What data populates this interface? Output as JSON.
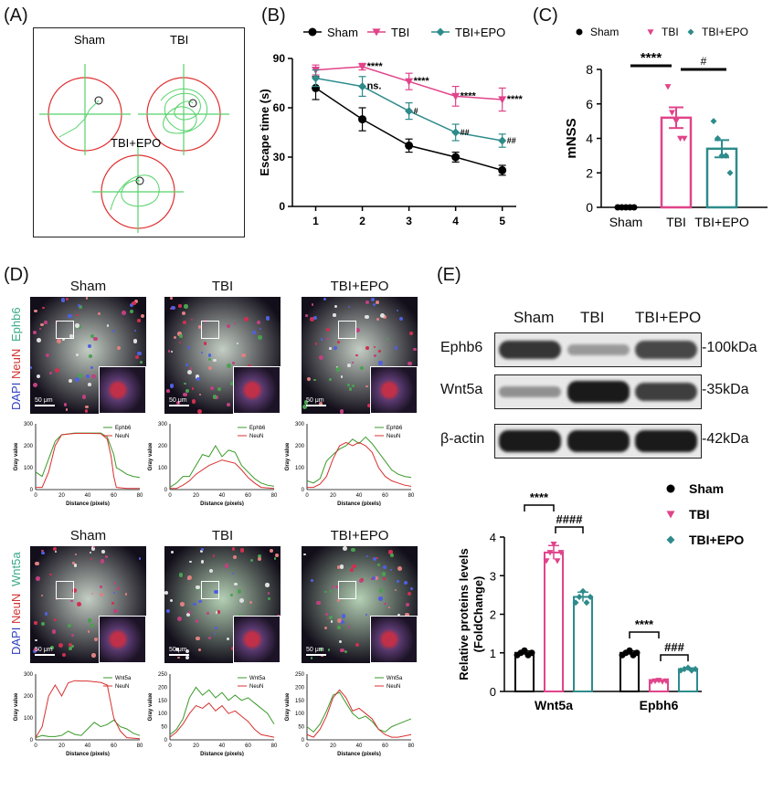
{
  "panel_labels": {
    "a": "(A)",
    "b": "(B)",
    "c": "(C)",
    "d": "(D)",
    "e": "(E)"
  },
  "colors": {
    "sham": "#000000",
    "tbi": "#e0448a",
    "epo": "#2e8b8b",
    "circle": "#e03030",
    "path": "#56d26a"
  },
  "panel_a": {
    "groups": [
      "Sham",
      "TBI",
      "TBI+EPO"
    ]
  },
  "chart_data": [
    {
      "id": "escape_time",
      "type": "line",
      "title": "",
      "xlabel": "",
      "ylabel": "Escape time (s)",
      "x": [
        1,
        2,
        3,
        4,
        5
      ],
      "xlim": [
        0.5,
        5.3
      ],
      "ylim": [
        0,
        90
      ],
      "yticks": [
        0,
        30,
        60,
        90
      ],
      "legend": [
        "Sham",
        "TBI",
        "TBI+EPO"
      ],
      "series": [
        {
          "name": "Sham",
          "values": [
            72,
            53,
            37,
            30,
            22
          ],
          "err": [
            7,
            7,
            4,
            3,
            3
          ]
        },
        {
          "name": "TBI",
          "values": [
            83,
            85,
            76,
            67,
            65
          ],
          "err": [
            3,
            2,
            5,
            6,
            7
          ]
        },
        {
          "name": "TBI+EPO",
          "values": [
            78,
            73,
            58,
            45,
            40
          ],
          "err": [
            5,
            6,
            5,
            5,
            4
          ]
        }
      ],
      "annotations": [
        {
          "x": 2,
          "series": "TBI",
          "text": "****"
        },
        {
          "x": 3,
          "series": "TBI",
          "text": "****"
        },
        {
          "x": 4,
          "series": "TBI",
          "text": "****"
        },
        {
          "x": 5,
          "series": "TBI",
          "text": "****"
        },
        {
          "x": 2,
          "series": "TBI+EPO",
          "text": "ns."
        },
        {
          "x": 3,
          "series": "TBI+EPO",
          "text": "#"
        },
        {
          "x": 4,
          "series": "TBI+EPO",
          "text": "##"
        },
        {
          "x": 5,
          "series": "TBI+EPO",
          "text": "##"
        }
      ]
    },
    {
      "id": "mnss",
      "type": "bar",
      "ylabel": "mNSS",
      "categories": [
        "Sham",
        "TBI",
        "TBI+EPO"
      ],
      "values": [
        0,
        5.2,
        3.4
      ],
      "err": [
        0,
        0.6,
        0.5
      ],
      "points": [
        [
          0,
          0,
          0,
          0,
          0
        ],
        [
          7,
          5.5,
          5,
          4,
          4
        ],
        [
          5,
          4,
          3,
          3,
          2
        ]
      ],
      "ylim": [
        0,
        8
      ],
      "yticks": [
        0,
        2,
        4,
        6,
        8
      ],
      "legend": [
        "Sham",
        "TBI",
        "TBI+EPO"
      ],
      "significance": [
        {
          "from": "Sham",
          "to": "TBI",
          "text": "****"
        },
        {
          "from": "TBI",
          "to": "TBI+EPO",
          "text": "#"
        }
      ]
    },
    {
      "id": "gray_ephb6",
      "type": "line",
      "xlabel": "Distance (pixels)",
      "ylabel": "Gray value",
      "xlim": [
        0,
        80
      ],
      "ylim": [
        0,
        300
      ],
      "panels": [
        {
          "group": "Sham",
          "legend": [
            "Ephb6",
            "NeuN"
          ],
          "green": [
            [
              0,
              80
            ],
            [
              5,
              60
            ],
            [
              10,
              140
            ],
            [
              15,
              220
            ],
            [
              20,
              250
            ],
            [
              30,
              258
            ],
            [
              40,
              258
            ],
            [
              50,
              258
            ],
            [
              55,
              240
            ],
            [
              60,
              160
            ],
            [
              62,
              100
            ],
            [
              65,
              90
            ],
            [
              70,
              70
            ],
            [
              75,
              60
            ],
            [
              80,
              55
            ]
          ],
          "red": [
            [
              0,
              10
            ],
            [
              5,
              10
            ],
            [
              10,
              80
            ],
            [
              15,
              200
            ],
            [
              20,
              250
            ],
            [
              30,
              256
            ],
            [
              40,
              256
            ],
            [
              50,
              255
            ],
            [
              55,
              230
            ],
            [
              58,
              150
            ],
            [
              60,
              60
            ],
            [
              62,
              10
            ],
            [
              70,
              5
            ],
            [
              80,
              5
            ]
          ]
        },
        {
          "group": "TBI",
          "legend": [
            "Ephb6",
            "NeuN"
          ],
          "green": [
            [
              0,
              10
            ],
            [
              5,
              30
            ],
            [
              10,
              60
            ],
            [
              15,
              60
            ],
            [
              20,
              110
            ],
            [
              25,
              160
            ],
            [
              30,
              150
            ],
            [
              35,
              200
            ],
            [
              40,
              150
            ],
            [
              45,
              180
            ],
            [
              50,
              170
            ],
            [
              55,
              110
            ],
            [
              60,
              80
            ],
            [
              65,
              50
            ],
            [
              70,
              30
            ],
            [
              75,
              20
            ],
            [
              80,
              15
            ]
          ],
          "red": [
            [
              0,
              5
            ],
            [
              5,
              5
            ],
            [
              10,
              20
            ],
            [
              15,
              40
            ],
            [
              20,
              70
            ],
            [
              30,
              110
            ],
            [
              40,
              135
            ],
            [
              50,
              120
            ],
            [
              55,
              90
            ],
            [
              60,
              55
            ],
            [
              65,
              30
            ],
            [
              70,
              10
            ],
            [
              80,
              5
            ]
          ]
        },
        {
          "group": "TBI+EPO",
          "legend": [
            "Ephb6",
            "NeuN"
          ],
          "green": [
            [
              0,
              40
            ],
            [
              5,
              30
            ],
            [
              10,
              50
            ],
            [
              15,
              130
            ],
            [
              20,
              160
            ],
            [
              25,
              185
            ],
            [
              30,
              200
            ],
            [
              35,
              230
            ],
            [
              40,
              210
            ],
            [
              45,
              240
            ],
            [
              50,
              210
            ],
            [
              55,
              170
            ],
            [
              60,
              130
            ],
            [
              65,
              90
            ],
            [
              70,
              70
            ],
            [
              75,
              60
            ],
            [
              80,
              55
            ]
          ],
          "red": [
            [
              0,
              10
            ],
            [
              5,
              10
            ],
            [
              10,
              25
            ],
            [
              15,
              60
            ],
            [
              20,
              140
            ],
            [
              25,
              200
            ],
            [
              30,
              215
            ],
            [
              35,
              200
            ],
            [
              40,
              215
            ],
            [
              45,
              200
            ],
            [
              50,
              170
            ],
            [
              55,
              100
            ],
            [
              60,
              60
            ],
            [
              65,
              40
            ],
            [
              70,
              30
            ],
            [
              75,
              20
            ],
            [
              80,
              15
            ]
          ]
        }
      ]
    },
    {
      "id": "gray_wnt5a",
      "type": "line",
      "xlabel": "Distance (pixels)",
      "ylabel": "Gray value",
      "xlim": [
        0,
        80
      ],
      "panels": [
        {
          "group": "Sham",
          "legend": [
            "Wnt5a",
            "NeuN"
          ],
          "ylim": [
            0,
            300
          ],
          "green": [
            [
              0,
              10
            ],
            [
              5,
              20
            ],
            [
              10,
              15
            ],
            [
              15,
              15
            ],
            [
              20,
              20
            ],
            [
              25,
              40
            ],
            [
              30,
              25
            ],
            [
              35,
              20
            ],
            [
              40,
              50
            ],
            [
              45,
              80
            ],
            [
              50,
              60
            ],
            [
              55,
              70
            ],
            [
              60,
              90
            ],
            [
              65,
              60
            ],
            [
              70,
              50
            ],
            [
              75,
              30
            ],
            [
              80,
              20
            ]
          ],
          "red": [
            [
              0,
              10
            ],
            [
              5,
              60
            ],
            [
              10,
              200
            ],
            [
              15,
              250
            ],
            [
              20,
              200
            ],
            [
              25,
              260
            ],
            [
              30,
              270
            ],
            [
              35,
              268
            ],
            [
              40,
              268
            ],
            [
              45,
              265
            ],
            [
              50,
              262
            ],
            [
              55,
              250
            ],
            [
              60,
              100
            ],
            [
              65,
              40
            ],
            [
              70,
              10
            ],
            [
              80,
              5
            ]
          ]
        },
        {
          "group": "TBI",
          "legend": [
            "Wnt5a",
            "NeuN"
          ],
          "ylim": [
            0,
            250
          ],
          "green": [
            [
              0,
              20
            ],
            [
              5,
              40
            ],
            [
              10,
              80
            ],
            [
              15,
              160
            ],
            [
              20,
              200
            ],
            [
              25,
              170
            ],
            [
              30,
              190
            ],
            [
              35,
              160
            ],
            [
              40,
              180
            ],
            [
              45,
              150
            ],
            [
              50,
              170
            ],
            [
              55,
              150
            ],
            [
              60,
              160
            ],
            [
              65,
              140
            ],
            [
              70,
              120
            ],
            [
              75,
              100
            ],
            [
              80,
              60
            ]
          ],
          "red": [
            [
              0,
              10
            ],
            [
              5,
              30
            ],
            [
              10,
              60
            ],
            [
              15,
              100
            ],
            [
              20,
              130
            ],
            [
              25,
              120
            ],
            [
              30,
              140
            ],
            [
              35,
              110
            ],
            [
              40,
              130
            ],
            [
              45,
              100
            ],
            [
              50,
              110
            ],
            [
              55,
              90
            ],
            [
              60,
              70
            ],
            [
              65,
              40
            ],
            [
              70,
              20
            ],
            [
              80,
              10
            ]
          ]
        },
        {
          "group": "TBI+EPO",
          "legend": [
            "Wnt5a",
            "NeuN"
          ],
          "ylim": [
            0,
            250
          ],
          "green": [
            [
              0,
              50
            ],
            [
              5,
              30
            ],
            [
              10,
              60
            ],
            [
              15,
              110
            ],
            [
              20,
              170
            ],
            [
              25,
              180
            ],
            [
              30,
              140
            ],
            [
              35,
              100
            ],
            [
              40,
              80
            ],
            [
              45,
              90
            ],
            [
              50,
              70
            ],
            [
              55,
              40
            ],
            [
              60,
              30
            ],
            [
              65,
              50
            ],
            [
              70,
              60
            ],
            [
              75,
              70
            ],
            [
              80,
              80
            ]
          ],
          "red": [
            [
              0,
              20
            ],
            [
              5,
              10
            ],
            [
              10,
              40
            ],
            [
              15,
              90
            ],
            [
              20,
              160
            ],
            [
              25,
              190
            ],
            [
              30,
              160
            ],
            [
              35,
              110
            ],
            [
              40,
              120
            ],
            [
              45,
              100
            ],
            [
              50,
              80
            ],
            [
              55,
              40
            ],
            [
              60,
              20
            ],
            [
              65,
              10
            ],
            [
              70,
              10
            ],
            [
              80,
              20
            ]
          ]
        }
      ]
    },
    {
      "id": "relative_proteins",
      "type": "bar",
      "ylabel": "Relative proteins levels (FoldChange)",
      "categories": [
        "Wnt5a",
        "Epbh6"
      ],
      "series": [
        {
          "name": "Sham",
          "values": [
            1.0,
            1.0
          ]
        },
        {
          "name": "TBI",
          "values": [
            3.6,
            0.27
          ]
        },
        {
          "name": "TBI+EPO",
          "values": [
            2.45,
            0.58
          ]
        }
      ],
      "ylim": [
        0,
        4
      ],
      "yticks": [
        0,
        1,
        2,
        3,
        4
      ],
      "significance": [
        {
          "category": "Wnt5a",
          "from": "Sham",
          "to": "TBI",
          "text": "****"
        },
        {
          "category": "Wnt5a",
          "from": "TBI",
          "to": "TBI+EPO",
          "text": "####"
        },
        {
          "category": "Epbh6",
          "from": "Sham",
          "to": "TBI",
          "text": "****"
        },
        {
          "category": "Epbh6",
          "from": "TBI",
          "to": "TBI+EPO",
          "text": "###"
        }
      ]
    }
  ],
  "panel_d": {
    "groups": [
      "Sham",
      "TBI",
      "TBI+EPO"
    ],
    "top_channels": [
      "Ephb6",
      "NeuN",
      "DAPI"
    ],
    "bottom_channels": [
      "Wnt5a",
      "NeuN",
      "DAPI"
    ],
    "scale_bar": "50 μm"
  },
  "panel_e": {
    "groups": [
      "Sham",
      "TBI",
      "TBI+EPO"
    ],
    "rows": [
      {
        "name": "Ephb6",
        "kda": "-100kDa",
        "intensity": [
          0.8,
          0.25,
          0.7
        ]
      },
      {
        "name": "Wnt5a",
        "kda": "-35kDa",
        "intensity": [
          0.3,
          0.95,
          0.75
        ]
      },
      {
        "name": "β-actin",
        "kda": "-42kDa",
        "intensity": [
          0.95,
          0.95,
          0.95
        ]
      }
    ]
  }
}
